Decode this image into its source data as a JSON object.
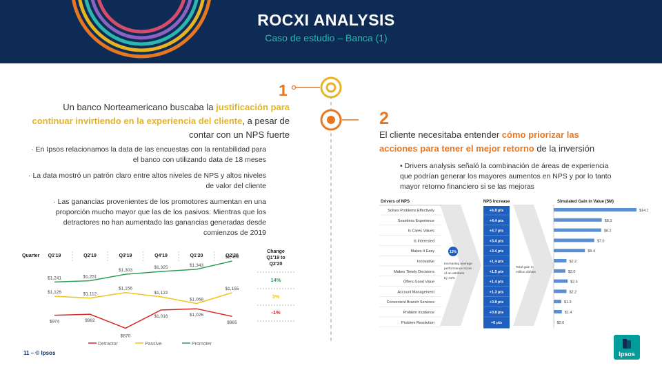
{
  "header": {
    "title": "ROCXI ANALYSIS",
    "subtitle": "Caso de estudio – Banca (1)"
  },
  "left": {
    "number": "1",
    "lead_pre": "Un banco Norteamericano buscaba la ",
    "lead_hl": "justificación para continuar invirtiendo en la experiencia del cliente",
    "lead_post": ", a pesar de contar con un NPS fuerte",
    "bullets": [
      "En Ipsos relacionamos la data de las encuestas con la rentabilidad para el banco con utilizando data de 18 meses",
      "La data mostró un patrón claro entre altos niveles de NPS y altos niveles de valor del cliente",
      "Las ganancias provenientes de los promotores aumentan en una proporción mucho mayor que las de los pasivos. Mientras que los detractores no han aumentado las ganancias generadas desde comienzos de 2019"
    ]
  },
  "right": {
    "number": "2",
    "lead_pre": "El cliente necesitaba entender ",
    "lead_hl": "cómo priorizar las acciones para tener el mejor retorno",
    "lead_post": " de la inversión",
    "bullet": "Drivers analysis señaló la combinación de áreas de experiencia que podrían generar los mayores aumentos en NPS y por lo tanto mayor retorno financiero si se las mejoras"
  },
  "footer": {
    "page": "11 –",
    "brand": "© Ipsos",
    "logo": "Ipsos"
  },
  "colors": {
    "navy": "#0d2b54",
    "teal": "#2bb7b0",
    "orange": "#e87722",
    "gold": "#e6b422",
    "red": "#d62728",
    "yellow": "#f0c419",
    "green": "#2e9e5b",
    "blue": "#5b8fd1",
    "dark_blue": "#1f5fbf"
  },
  "chart_data": [
    {
      "type": "line",
      "corner_label": "Quarter",
      "categories": [
        "Q1'19",
        "Q2'19",
        "Q3'19",
        "Q4'19",
        "Q1'20",
        "Q2'20"
      ],
      "series": [
        {
          "name": "Detractor",
          "values": [
            974,
            982,
            870,
            1016,
            1026,
            965
          ],
          "labels": [
            "$974",
            "$982",
            "$870",
            "$1,016",
            "$1,026",
            "$965"
          ]
        },
        {
          "name": "Passive",
          "values": [
            1126,
            1112,
            1156,
            1122,
            1068,
            1155
          ],
          "labels": [
            "$1,126",
            "$1,112",
            "$1,156",
            "$1,122",
            "$1,068",
            "$1,155"
          ]
        },
        {
          "name": "Promoter",
          "values": [
            1241,
            1251,
            1303,
            1325,
            1343,
            1409
          ],
          "labels": [
            "$1,241",
            "$1,251",
            "$1,303",
            "$1,325",
            "$1,343",
            "$1,409"
          ]
        }
      ],
      "change_header": "Change Q1'19 to Q2'20",
      "changes": [
        {
          "series": "Promoter",
          "value": "14%"
        },
        {
          "series": "Passive",
          "value": "3%"
        },
        {
          "series": "Detractor",
          "value": "-1%"
        }
      ],
      "legend": "bottom"
    },
    {
      "type": "bar",
      "orientation": "horizontal",
      "headers": {
        "drivers": "Drivers of NPS",
        "increase": "NPS Increase",
        "gain": "Simulated Gain in Value ($M)"
      },
      "categories": [
        "Solves Problems Effectively",
        "Seamless Experience",
        "Is Cares Values",
        "Is Interested",
        "Makes It Easy",
        "Innovative",
        "Makes Timely Decisions",
        "Offers Good Value",
        "Account Management",
        "Convenient Branch Services",
        "Problem Incidence",
        "Problem Resolution"
      ],
      "nps_increase": [
        "+6.8 pts",
        "+4.4 pts",
        "+4.7 pts",
        "+3.4 pts",
        "+3.4 pts",
        "+1.4 pts",
        "+1.5 pts",
        "+1.4 pts",
        "+1.3 pts",
        "+0.8 pts",
        "+0.8 pts",
        "+0 pts"
      ],
      "values": [
        14.3,
        8.3,
        8.2,
        7.0,
        5.4,
        2.2,
        2.0,
        2.4,
        2.2,
        1.3,
        1.4,
        0.0
      ],
      "value_labels": [
        "$14.3",
        "$8.3",
        "$8.2",
        "$7.0",
        "$5.4",
        "$2.2",
        "$2.0",
        "$2.4",
        "$2.2",
        "$1.3",
        "$1.4",
        "$0.0"
      ],
      "xlim": [
        0,
        14.3
      ],
      "callout_badge": "13%",
      "callout_text": [
        "Increasing average",
        "performance score",
        "of an attribute",
        "by 43%"
      ],
      "gain_note": [
        "Total gain in",
        "million dollars"
      ]
    }
  ]
}
